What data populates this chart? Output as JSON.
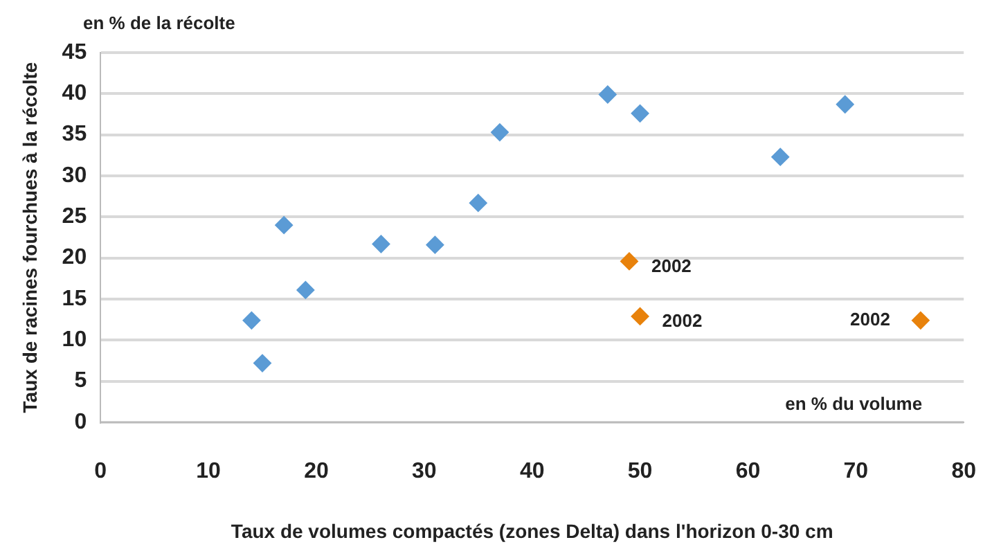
{
  "chart_data": {
    "type": "scatter",
    "xlabel": "Taux de volumes compactés (zones Delta) dans l'horizon 0-30 cm",
    "ylabel": "Taux de racines fourchues à la récolte",
    "series": [
      {
        "color": "#5b9bd5",
        "x": [
          14,
          15,
          17,
          19,
          26,
          31,
          35,
          37,
          47,
          50,
          63,
          69
        ],
        "values": [
          12.4,
          7.2,
          24.0,
          16.1,
          21.7,
          21.6,
          26.7,
          35.3,
          39.9,
          37.6,
          32.3,
          38.7
        ]
      },
      {
        "color": "#e8820c",
        "x": [
          49,
          50,
          76
        ],
        "values": [
          19.6,
          12.9,
          12.4
        ]
      }
    ],
    "xlim": [
      0,
      80
    ],
    "xticks": [
      0,
      10,
      20,
      30,
      40,
      50,
      60,
      70,
      80
    ],
    "ylim": [
      0,
      45
    ],
    "yticks": [
      0,
      5,
      10,
      15,
      20,
      25,
      30,
      35,
      40,
      45
    ],
    "grid": "y",
    "marker": "diamond",
    "legend": false,
    "annotations": [
      "en % de la récolte",
      "en % du volume",
      {
        "text": "2002",
        "x": 49,
        "y": 19.6
      },
      {
        "text": "2002",
        "x": 50,
        "y": 12.9
      },
      {
        "text": "2002",
        "x": 76,
        "y": 12.4
      }
    ]
  }
}
